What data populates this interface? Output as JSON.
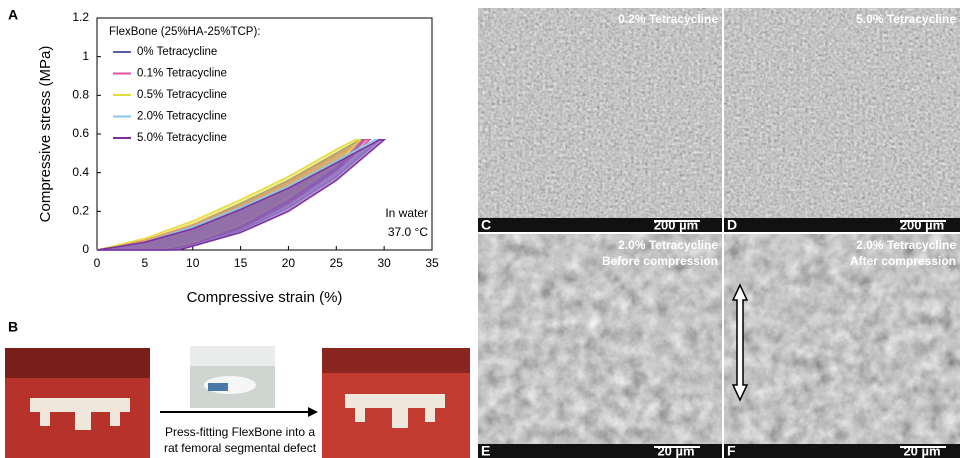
{
  "chart_data": {
    "type": "line",
    "xlabel": "Compressive strain (%)",
    "ylabel": "Compressive stress (MPa)",
    "legend_title": "FlexBone (25%HA-25%TCP):",
    "legend": "upper left",
    "annotations": [
      "In water",
      "37.0 °C"
    ],
    "xlim": [
      0,
      35
    ],
    "xticks": [
      0,
      5,
      10,
      15,
      20,
      25,
      30,
      35
    ],
    "ylim": [
      0,
      1.2
    ],
    "yticks": [
      0,
      0.2,
      0.4,
      0.6,
      0.8,
      1,
      1.2
    ],
    "series": [
      {
        "name": "0% Tetracycline",
        "color": "#5b5ea6",
        "x": [
          0,
          5,
          10,
          15,
          20,
          25,
          27.5,
          28,
          25,
          20,
          15,
          10,
          7
        ],
        "values": [
          0,
          0.05,
          0.13,
          0.24,
          0.36,
          0.5,
          0.57,
          0.57,
          0.42,
          0.25,
          0.12,
          0.03,
          0
        ]
      },
      {
        "name": "0.1% Tetracycline",
        "color": "#e0529c",
        "x": [
          0,
          5,
          10,
          15,
          20,
          25,
          28,
          28.5,
          25,
          20,
          15,
          10,
          7.5
        ],
        "values": [
          0,
          0.05,
          0.13,
          0.23,
          0.35,
          0.49,
          0.57,
          0.57,
          0.41,
          0.24,
          0.11,
          0.03,
          0
        ]
      },
      {
        "name": "0.5% Tetracycline",
        "color": "#e6dc3c",
        "x": [
          0,
          5,
          10,
          15,
          20,
          25,
          27,
          27.5,
          25,
          20,
          15,
          10,
          6.5
        ],
        "values": [
          0,
          0.06,
          0.15,
          0.26,
          0.38,
          0.52,
          0.57,
          0.57,
          0.44,
          0.27,
          0.13,
          0.04,
          0
        ]
      },
      {
        "name": "2.0% Tetracycline",
        "color": "#86c8e6",
        "x": [
          0,
          5,
          10,
          15,
          20,
          25,
          29,
          29.5,
          25,
          20,
          15,
          10,
          8
        ],
        "values": [
          0,
          0.04,
          0.12,
          0.22,
          0.33,
          0.46,
          0.57,
          0.57,
          0.38,
          0.22,
          0.1,
          0.02,
          0
        ]
      },
      {
        "name": "5.0% Tetracycline",
        "color": "#7e2fa0",
        "x": [
          0,
          5,
          10,
          15,
          20,
          25,
          29.5,
          30,
          25,
          20,
          15,
          10,
          8.5
        ],
        "values": [
          0,
          0.04,
          0.11,
          0.21,
          0.32,
          0.45,
          0.57,
          0.57,
          0.36,
          0.2,
          0.09,
          0.02,
          0
        ]
      }
    ]
  },
  "panel_labels": [
    "A",
    "B"
  ],
  "panel_b": {
    "caption": [
      "Press-fitting FlexBone into a",
      "rat femoral segmental defect"
    ]
  },
  "sem_images": [
    {
      "letter": "C",
      "labels": [
        "0.2% Tetracycline"
      ],
      "scale": "200 µm"
    },
    {
      "letter": "D",
      "labels": [
        "5.0% Tetracycline"
      ],
      "scale": "200 µm"
    },
    {
      "letter": "E",
      "labels": [
        "2.0% Tetracycline",
        "Before compression"
      ],
      "scale": "20 µm"
    },
    {
      "letter": "F",
      "labels": [
        "2.0% Tetracycline",
        "After compression"
      ],
      "scale": "20 µm"
    }
  ]
}
